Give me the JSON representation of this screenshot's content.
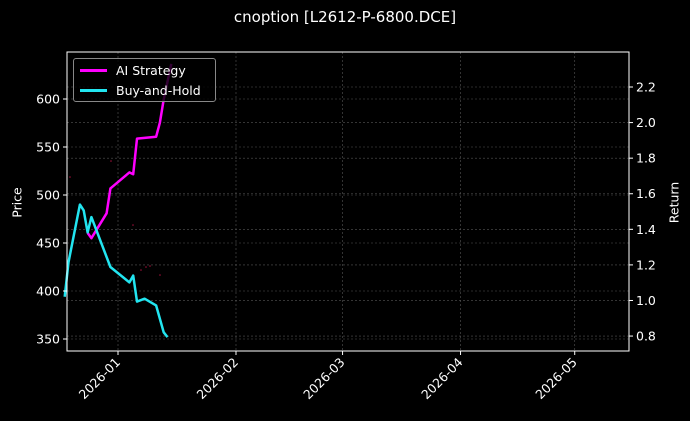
{
  "chart_data": {
    "type": "line",
    "title": "cnoption [L2612-P-6800.DCE]",
    "xlabel": "",
    "ylabel": "Price",
    "y2label": "Return",
    "x_ticks": [
      "2026-01",
      "2026-02",
      "2026-03",
      "2026-04",
      "2026-05"
    ],
    "y_ticks": [
      350,
      400,
      450,
      500,
      550,
      600
    ],
    "y2_ticks": [
      0.8,
      1.0,
      1.2,
      1.4,
      1.6,
      1.8,
      2.0,
      2.2
    ],
    "ylim": [
      335,
      650
    ],
    "y2lim": [
      0.72,
      2.4
    ],
    "grid": true,
    "legend_position": "upper left",
    "series": [
      {
        "name": "AI Strategy",
        "axis": "right",
        "color": "#ff00ff",
        "x": [
          "2025-12-24",
          "2025-12-25",
          "2025-12-29",
          "2025-12-30",
          "2026-01-04",
          "2026-01-05",
          "2026-01-06",
          "2026-01-11",
          "2026-01-12",
          "2026-01-13",
          "2026-01-15"
        ],
        "values": [
          1.38,
          1.35,
          1.49,
          1.63,
          1.72,
          1.71,
          1.91,
          1.92,
          2.0,
          2.13,
          2.33
        ]
      },
      {
        "name": "Buy-and-Hold",
        "axis": "left",
        "color": "#22e5f0",
        "x": [
          "2025-12-18",
          "2025-12-19",
          "2025-12-22",
          "2025-12-23",
          "2025-12-24",
          "2025-12-25",
          "2025-12-30",
          "2026-01-04",
          "2026-01-05",
          "2026-01-06",
          "2026-01-08",
          "2026-01-11",
          "2026-01-13",
          "2026-01-14"
        ],
        "values": [
          394,
          430,
          490,
          484,
          461,
          477,
          425,
          409,
          416,
          389,
          392,
          385,
          357,
          352
        ]
      }
    ]
  },
  "legend": {
    "items": [
      {
        "label": "AI Strategy"
      },
      {
        "label": "Buy-and-Hold"
      }
    ]
  }
}
